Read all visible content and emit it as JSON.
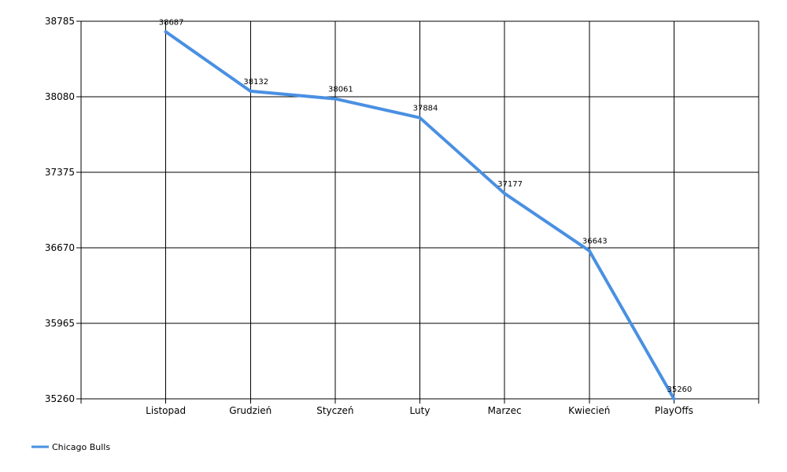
{
  "chart_data": {
    "type": "line",
    "categories": [
      "Listopad",
      "Grudzień",
      "Styczeń",
      "Luty",
      "Marzec",
      "Kwiecień",
      "PlayOffs"
    ],
    "series": [
      {
        "name": "Chicago Bulls",
        "values": [
          38687,
          38132,
          38061,
          37884,
          37177,
          36643,
          35260
        ],
        "color": "#4A90E2"
      }
    ],
    "yticks": [
      35260,
      35965,
      36670,
      37375,
      38080,
      38785
    ],
    "ylim": [
      35260,
      38785
    ],
    "grid": true,
    "data_labels": true,
    "legend": "bottom-left"
  }
}
